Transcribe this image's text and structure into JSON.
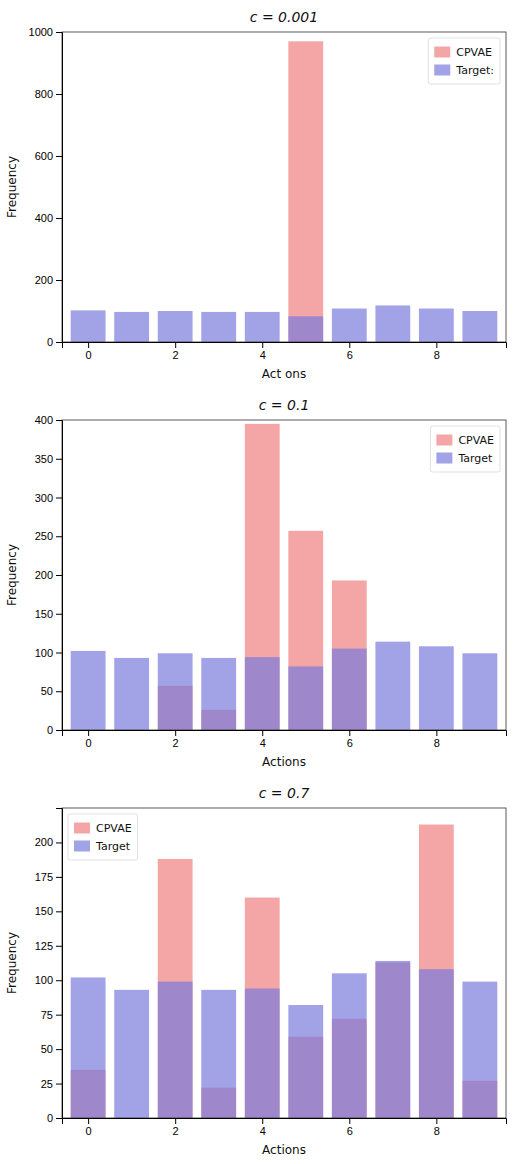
{
  "chart_data": [
    {
      "type": "bar",
      "title": "c = 0.001",
      "xlabel": "Act ons",
      "ylabel": "Frequency",
      "x": [
        0,
        1,
        2,
        3,
        4,
        5,
        6,
        7,
        8,
        9
      ],
      "series": [
        {
          "name": "CPVAE",
          "color": "#F08080",
          "values": [
            0,
            0,
            0,
            0,
            0,
            970,
            0,
            0,
            0,
            0
          ]
        },
        {
          "name": "Target:",
          "color": "#7B7BDD",
          "values": [
            102,
            97,
            100,
            97,
            97,
            83,
            108,
            118,
            108,
            100
          ]
        }
      ],
      "xlim": [
        -0.6,
        9.6
      ],
      "xticks": [
        0,
        2,
        4,
        6,
        8
      ],
      "ylim": [
        0,
        1000
      ],
      "yticks": [
        0,
        200,
        400,
        600,
        800,
        1000
      ],
      "legend": "upper right",
      "grid": false
    },
    {
      "type": "bar",
      "title": "c = 0.1",
      "xlabel": "Actions",
      "ylabel": "Frequency",
      "x": [
        0,
        1,
        2,
        3,
        4,
        5,
        6,
        7,
        8,
        9
      ],
      "series": [
        {
          "name": "CPVAE",
          "color": "#F08080",
          "values": [
            0,
            0,
            57,
            26,
            395,
            257,
            193,
            0,
            0,
            0
          ]
        },
        {
          "name": "Target",
          "color": "#7B7BDD",
          "values": [
            102,
            93,
            99,
            93,
            94,
            82,
            105,
            114,
            108,
            99
          ]
        }
      ],
      "xlim": [
        -0.6,
        9.6
      ],
      "xticks": [
        0,
        2,
        4,
        6,
        8
      ],
      "ylim": [
        0,
        400
      ],
      "yticks": [
        0,
        50,
        100,
        150,
        200,
        250,
        300,
        350,
        400
      ],
      "legend": "upper right",
      "grid": false
    },
    {
      "type": "bar",
      "title": "c = 0.7",
      "xlabel": "Actions",
      "ylabel": "Frequency",
      "x": [
        0,
        1,
        2,
        3,
        4,
        5,
        6,
        7,
        8,
        9
      ],
      "series": [
        {
          "name": "CPVAE",
          "color": "#F08080",
          "values": [
            35,
            0,
            188,
            22,
            160,
            59,
            72,
            113,
            213,
            27
          ]
        },
        {
          "name": "Target",
          "color": "#7B7BDD",
          "values": [
            102,
            93,
            99,
            93,
            94,
            82,
            105,
            114,
            108,
            99
          ]
        }
      ],
      "xlim": [
        -0.6,
        9.6
      ],
      "xticks": [
        0,
        2,
        4,
        6,
        8
      ],
      "ylim": [
        0,
        225
      ],
      "yticks": [
        0,
        25,
        50,
        75,
        100,
        125,
        150,
        175,
        200
      ],
      "legend": "upper left",
      "grid": false
    }
  ]
}
